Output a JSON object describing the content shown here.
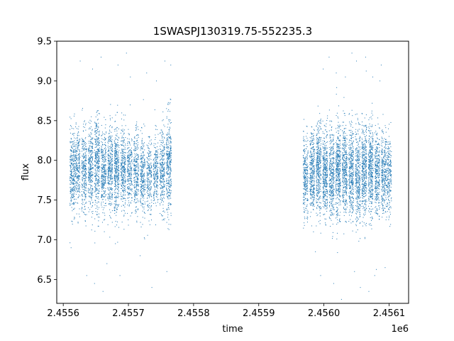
{
  "chart_data": {
    "type": "scatter",
    "title": "1SWASPJ130319.75-552235.3",
    "xlabel": "time",
    "ylabel": "flux",
    "x_offset_label": "1e6",
    "xlim": [
      2.45559,
      2.45613
    ],
    "ylim": [
      6.2,
      9.5
    ],
    "x_ticks": [
      2.4556,
      2.4557,
      2.4558,
      2.4559,
      2.456,
      2.4561
    ],
    "x_tick_labels": [
      "2.4556",
      "2.4557",
      "2.4558",
      "2.4559",
      "2.4560",
      "2.4561"
    ],
    "y_ticks": [
      6.5,
      7.0,
      7.5,
      8.0,
      8.5,
      9.0,
      9.5
    ],
    "y_tick_labels": [
      "6.5",
      "7.0",
      "7.5",
      "8.0",
      "8.5",
      "9.0",
      "9.5"
    ],
    "grid": false,
    "marker_color": "#1f77b4",
    "series": [
      {
        "name": "",
        "clusters": [
          {
            "x": 2.455614,
            "center": 7.85,
            "spread": 0.3,
            "count": 60
          },
          {
            "x": 2.455622,
            "center": 7.9,
            "spread": 0.28,
            "count": 50
          },
          {
            "x": 2.455632,
            "center": 7.85,
            "spread": 0.3,
            "count": 55
          },
          {
            "x": 2.455642,
            "center": 7.9,
            "spread": 0.32,
            "count": 60
          },
          {
            "x": 2.455652,
            "center": 7.95,
            "spread": 0.35,
            "count": 70
          },
          {
            "x": 2.455662,
            "center": 7.85,
            "spread": 0.3,
            "count": 60
          },
          {
            "x": 2.455672,
            "center": 7.85,
            "spread": 0.32,
            "count": 65
          },
          {
            "x": 2.455682,
            "center": 7.9,
            "spread": 0.33,
            "count": 70
          },
          {
            "x": 2.455692,
            "center": 7.9,
            "spread": 0.3,
            "count": 60
          },
          {
            "x": 2.455702,
            "center": 7.85,
            "spread": 0.28,
            "count": 50
          },
          {
            "x": 2.455712,
            "center": 7.85,
            "spread": 0.3,
            "count": 55
          },
          {
            "x": 2.455722,
            "center": 7.8,
            "spread": 0.3,
            "count": 55
          },
          {
            "x": 2.455732,
            "center": 7.8,
            "spread": 0.28,
            "count": 45
          },
          {
            "x": 2.455742,
            "center": 7.85,
            "spread": 0.28,
            "count": 45
          },
          {
            "x": 2.455752,
            "center": 7.85,
            "spread": 0.3,
            "count": 55
          },
          {
            "x": 2.455762,
            "center": 7.95,
            "spread": 0.35,
            "count": 70
          },
          {
            "x": 2.455972,
            "center": 7.8,
            "spread": 0.3,
            "count": 55
          },
          {
            "x": 2.455982,
            "center": 7.85,
            "spread": 0.3,
            "count": 65
          },
          {
            "x": 2.455992,
            "center": 7.9,
            "spread": 0.33,
            "count": 75
          },
          {
            "x": 2.456002,
            "center": 7.85,
            "spread": 0.32,
            "count": 75
          },
          {
            "x": 2.456012,
            "center": 7.8,
            "spread": 0.33,
            "count": 70
          },
          {
            "x": 2.456022,
            "center": 7.85,
            "spread": 0.35,
            "count": 80
          },
          {
            "x": 2.456032,
            "center": 7.9,
            "spread": 0.33,
            "count": 75
          },
          {
            "x": 2.456042,
            "center": 7.85,
            "spread": 0.32,
            "count": 70
          },
          {
            "x": 2.456052,
            "center": 7.8,
            "spread": 0.33,
            "count": 70
          },
          {
            "x": 2.456062,
            "center": 7.85,
            "spread": 0.35,
            "count": 80
          },
          {
            "x": 2.456072,
            "center": 7.9,
            "spread": 0.33,
            "count": 75
          },
          {
            "x": 2.456082,
            "center": 7.85,
            "spread": 0.3,
            "count": 65
          },
          {
            "x": 2.456092,
            "center": 7.85,
            "spread": 0.3,
            "count": 60
          },
          {
            "x": 2.4561,
            "center": 7.8,
            "spread": 0.28,
            "count": 45
          }
        ],
        "outliers": [
          [
            2.455612,
            6.9
          ],
          [
            2.455626,
            9.25
          ],
          [
            2.455636,
            6.55
          ],
          [
            2.455645,
            9.15
          ],
          [
            2.455648,
            6.45
          ],
          [
            2.455658,
            9.3
          ],
          [
            2.455661,
            6.35
          ],
          [
            2.455667,
            6.7
          ],
          [
            2.455684,
            9.2
          ],
          [
            2.455687,
            6.55
          ],
          [
            2.455697,
            9.35
          ],
          [
            2.455703,
            9.05
          ],
          [
            2.455718,
            6.8
          ],
          [
            2.455728,
            9.1
          ],
          [
            2.455736,
            6.4
          ],
          [
            2.455743,
            9.0
          ],
          [
            2.455756,
            9.25
          ],
          [
            2.455759,
            6.6
          ],
          [
            2.455765,
            9.2
          ],
          [
            2.455987,
            6.85
          ],
          [
            2.455995,
            6.55
          ],
          [
            2.455999,
            9.15
          ],
          [
            2.456008,
            9.3
          ],
          [
            2.456015,
            6.45
          ],
          [
            2.456019,
            9.1
          ],
          [
            2.456027,
            6.25
          ],
          [
            2.456033,
            9.05
          ],
          [
            2.456043,
            9.35
          ],
          [
            2.456047,
            6.6
          ],
          [
            2.45605,
            9.25
          ],
          [
            2.456056,
            6.4
          ],
          [
            2.456064,
            9.3
          ],
          [
            2.456069,
            6.35
          ],
          [
            2.456075,
            9.05
          ],
          [
            2.456078,
            6.55
          ],
          [
            2.456086,
            9.0
          ],
          [
            2.456094,
            6.65
          ],
          [
            2.456088,
            9.2
          ]
        ]
      }
    ]
  }
}
